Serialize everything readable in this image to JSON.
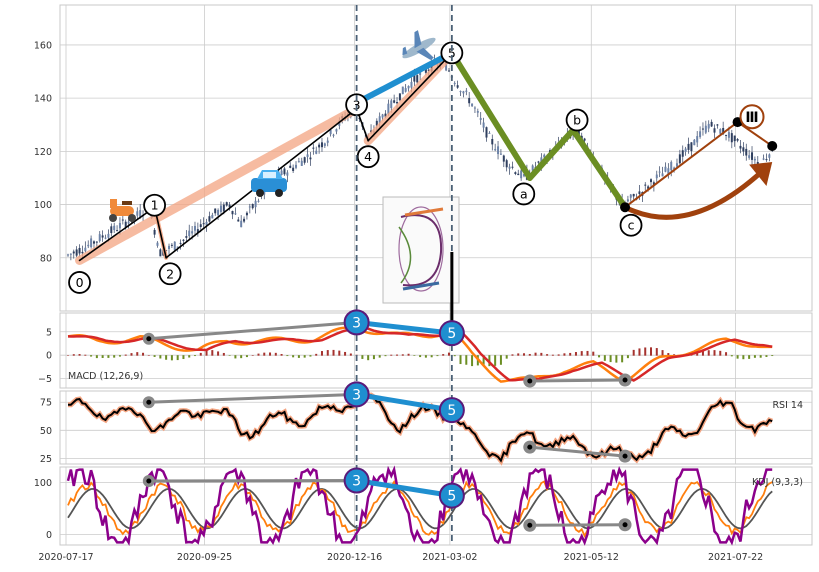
{
  "chart_data": [
    {
      "type": "candlestick",
      "panel": "price",
      "title": "",
      "ylim": [
        60,
        175
      ],
      "yticks": [
        80,
        100,
        120,
        140,
        160
      ],
      "grid": true,
      "x_dates": [
        "2020-07-17",
        "2020-09-25",
        "2020-12-16",
        "2021-03-02",
        "2021-05-12",
        "2021-07-22"
      ],
      "price_series": [
        {
          "t": 0,
          "v": 81
        },
        {
          "t": 6,
          "v": 84
        },
        {
          "t": 12,
          "v": 88
        },
        {
          "t": 18,
          "v": 92
        },
        {
          "t": 24,
          "v": 96
        },
        {
          "t": 28,
          "v": 99
        },
        {
          "t": 32,
          "v": 82
        },
        {
          "t": 38,
          "v": 85
        },
        {
          "t": 44,
          "v": 90
        },
        {
          "t": 50,
          "v": 96
        },
        {
          "t": 56,
          "v": 100
        },
        {
          "t": 60,
          "v": 93
        },
        {
          "t": 66,
          "v": 102
        },
        {
          "t": 72,
          "v": 110
        },
        {
          "t": 78,
          "v": 114
        },
        {
          "t": 84,
          "v": 119
        },
        {
          "t": 90,
          "v": 125
        },
        {
          "t": 96,
          "v": 133
        },
        {
          "t": 100,
          "v": 136
        },
        {
          "t": 104,
          "v": 124
        },
        {
          "t": 108,
          "v": 132
        },
        {
          "t": 114,
          "v": 140
        },
        {
          "t": 120,
          "v": 147
        },
        {
          "t": 126,
          "v": 152
        },
        {
          "t": 130,
          "v": 154
        },
        {
          "t": 134,
          "v": 147
        },
        {
          "t": 140,
          "v": 138
        },
        {
          "t": 146,
          "v": 125
        },
        {
          "t": 152,
          "v": 116
        },
        {
          "t": 158,
          "v": 110
        },
        {
          "t": 164,
          "v": 116
        },
        {
          "t": 170,
          "v": 122
        },
        {
          "t": 176,
          "v": 128
        },
        {
          "t": 182,
          "v": 118
        },
        {
          "t": 188,
          "v": 106
        },
        {
          "t": 192,
          "v": 100
        },
        {
          "t": 198,
          "v": 104
        },
        {
          "t": 204,
          "v": 110
        },
        {
          "t": 210,
          "v": 115
        },
        {
          "t": 216,
          "v": 122
        },
        {
          "t": 222,
          "v": 130
        },
        {
          "t": 228,
          "v": 127
        },
        {
          "t": 234,
          "v": 121
        },
        {
          "t": 240,
          "v": 115
        },
        {
          "t": 244,
          "v": 121
        }
      ],
      "wave_points": [
        {
          "label": "0",
          "t": 4,
          "v": 79
        },
        {
          "label": "1",
          "t": 30,
          "v": 99
        },
        {
          "label": "2",
          "t": 34,
          "v": 80
        },
        {
          "label": "3",
          "t": 100,
          "v": 136
        },
        {
          "label": "4",
          "t": 104,
          "v": 124
        },
        {
          "label": "5",
          "t": 133,
          "v": 157
        },
        {
          "label": "a",
          "t": 160,
          "v": 110
        },
        {
          "label": "b",
          "t": 175,
          "v": 128
        },
        {
          "label": "c",
          "t": 193,
          "v": 99
        },
        {
          "label": "Ⅲ",
          "t": 232,
          "v": 131
        }
      ],
      "label_text": {
        "w0": "0",
        "w1": "1",
        "w2": "2",
        "w3": "3",
        "w4": "4",
        "w5": "5",
        "wa": "a",
        "wb": "b",
        "wc": "c",
        "w3r": "Ⅲ"
      },
      "vertical_markers_t": [
        100,
        133
      ]
    },
    {
      "type": "line+bar",
      "panel": "macd",
      "label": "MACD (12,26,9)",
      "yticks": [
        5,
        0,
        -5
      ],
      "ylim": [
        -7,
        9
      ],
      "series": [
        {
          "name": "macd",
          "color": "#ff7f0e"
        },
        {
          "name": "signal",
          "color": "#d62728"
        }
      ],
      "divergence_points": [
        {
          "label": "3",
          "t": 100,
          "v": 7
        },
        {
          "label": "5",
          "t": 133,
          "v": 4.7
        }
      ]
    },
    {
      "type": "line",
      "panel": "rsi",
      "label": "RSI 14",
      "yticks": [
        75,
        50,
        25
      ],
      "ylim": [
        20,
        85
      ],
      "divergence_points": [
        {
          "label": "3",
          "t": 100,
          "v": 82
        },
        {
          "label": "5",
          "t": 133,
          "v": 68
        }
      ]
    },
    {
      "type": "line",
      "panel": "kdj",
      "label": "KDJ (9,3,3)",
      "yticks": [
        100,
        0
      ],
      "ylim": [
        -20,
        130
      ],
      "series": [
        {
          "name": "K",
          "color": "#ff7f0e"
        },
        {
          "name": "D",
          "color": "#555555"
        },
        {
          "name": "J",
          "color": "#8b008b"
        }
      ],
      "divergence_points": [
        {
          "label": "3",
          "t": 100,
          "v": 104
        },
        {
          "label": "5",
          "t": 133,
          "v": 75
        }
      ]
    }
  ],
  "colors": {
    "candle": "#2f3f5f",
    "impulse_trend": "#f4a582",
    "wave3_5": "#1f8fd0",
    "correction": "#6b8e23",
    "wave_III": "#a0410d",
    "divergence": "#888888",
    "grid": "#cccccc"
  },
  "icons": [
    "scooter-icon",
    "car-icon",
    "airplane-icon",
    "fibonacci-shell-icon"
  ]
}
